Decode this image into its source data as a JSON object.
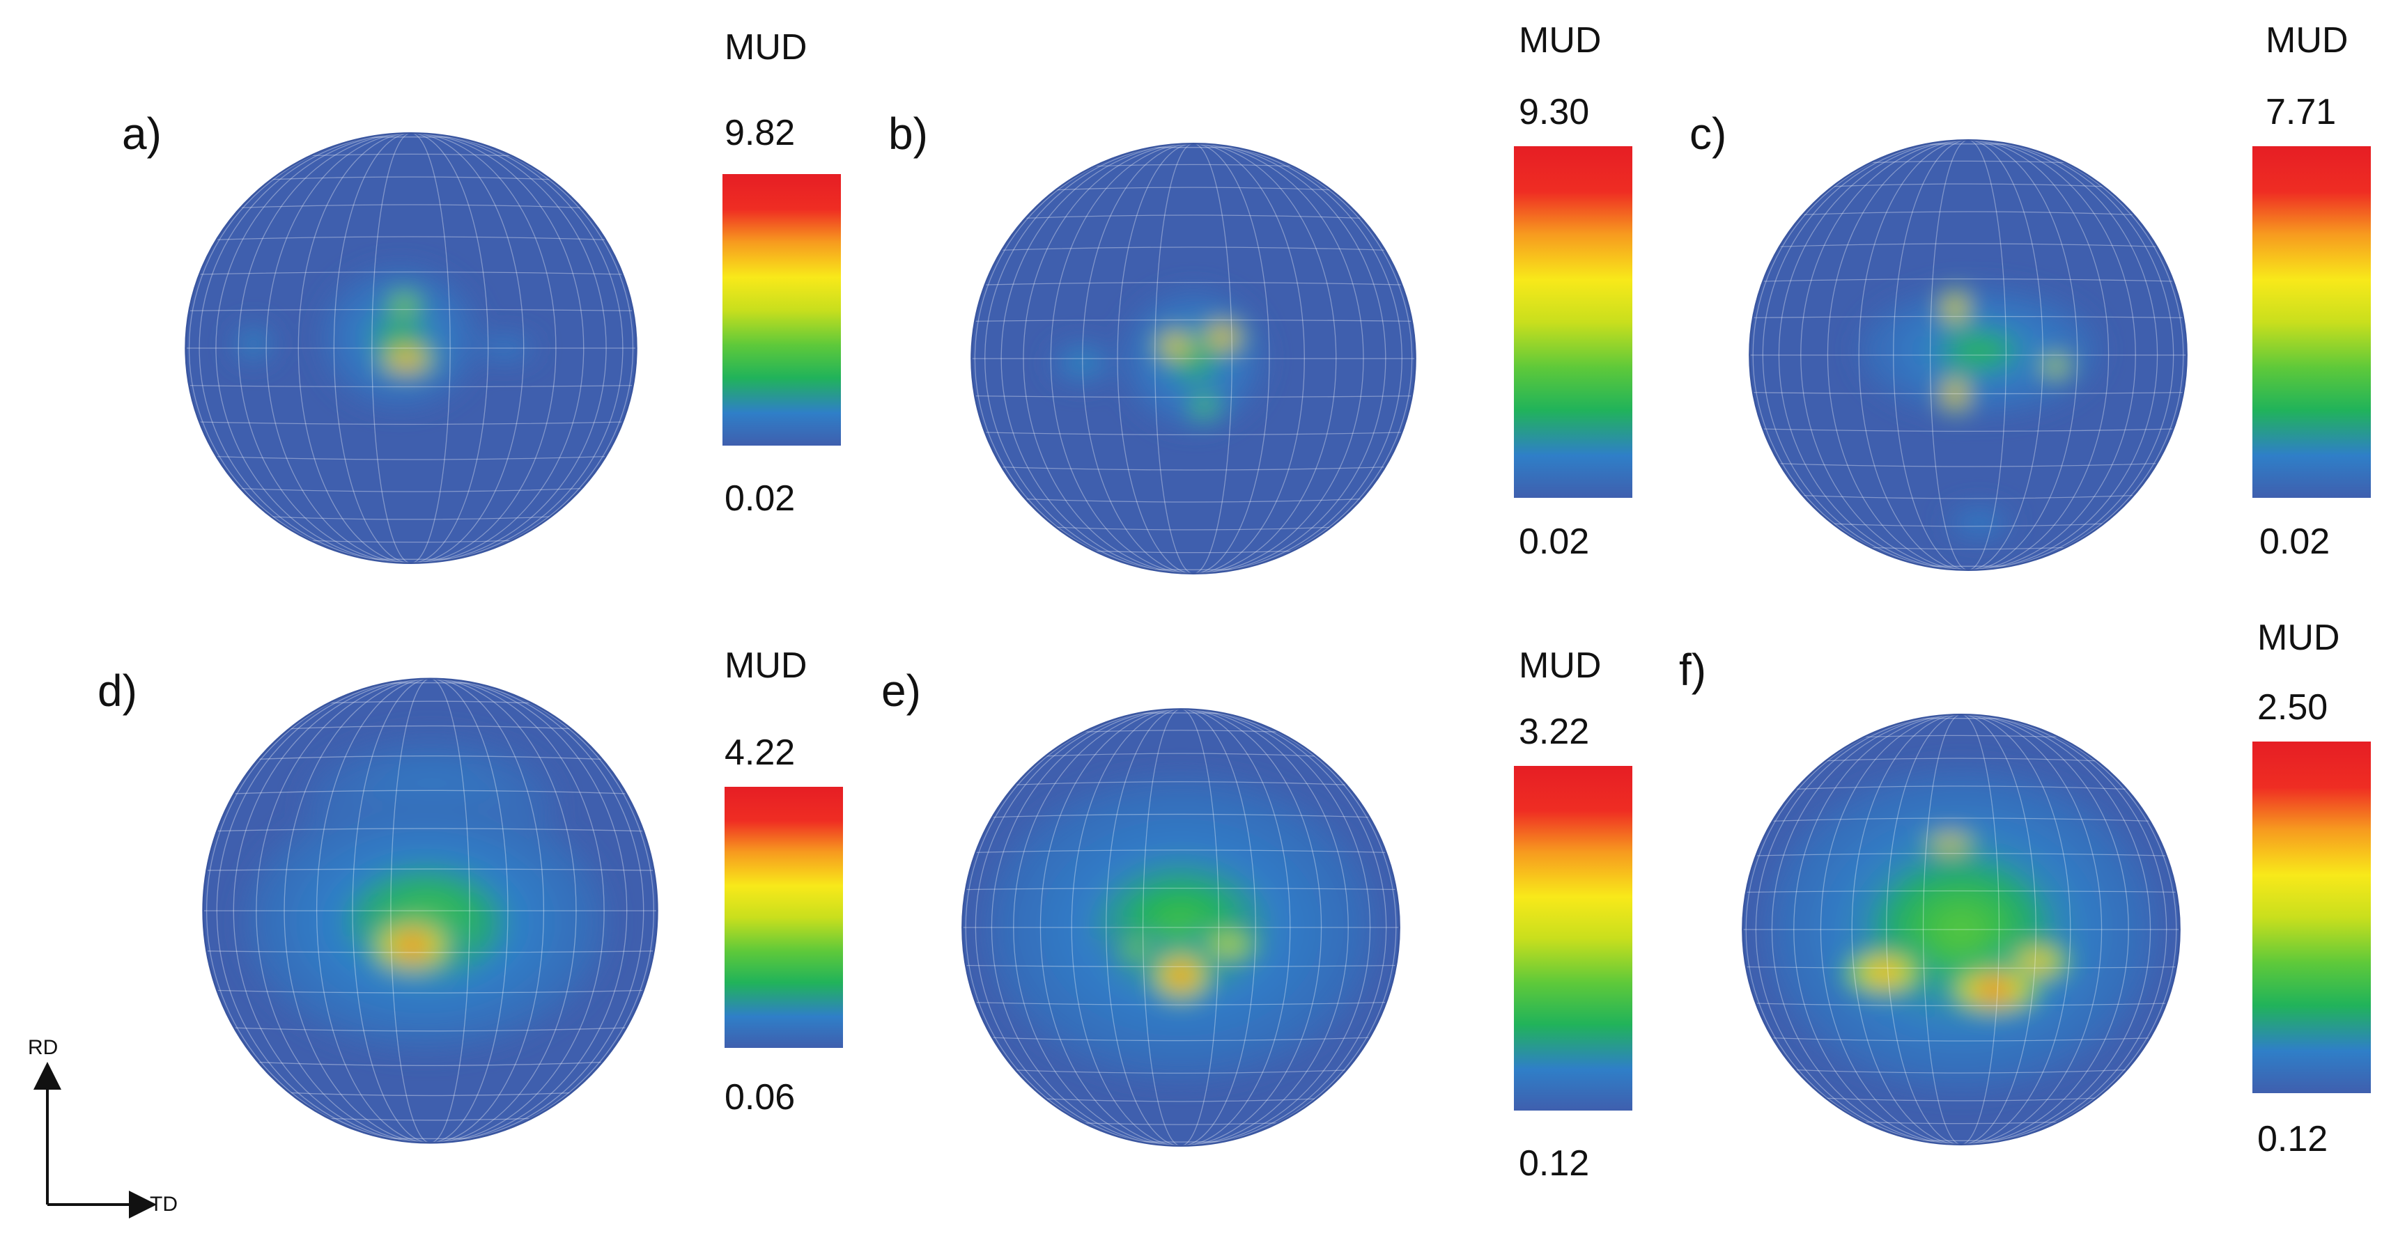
{
  "figure": {
    "panels": [
      {
        "id": "a",
        "label": "a)",
        "unit_title": "MUD",
        "max": "9.82",
        "min": "0.02",
        "hotspots": [
          {
            "u": -0.02,
            "v": 0.05,
            "rx": 0.14,
            "ry": 0.08,
            "level": 1.0
          },
          {
            "u": -0.03,
            "v": -0.2,
            "rx": 0.11,
            "ry": 0.09,
            "level": 0.6
          },
          {
            "u": -0.05,
            "v": -0.05,
            "rx": 0.35,
            "ry": 0.33,
            "level": 0.35
          },
          {
            "u": -0.7,
            "v": -0.02,
            "rx": 0.09,
            "ry": 0.09,
            "level": 0.3
          },
          {
            "u": 0.42,
            "v": 0.0,
            "rx": 0.13,
            "ry": 0.07,
            "level": 0.25
          }
        ]
      },
      {
        "id": "b",
        "label": "b)",
        "unit_title": "MUD",
        "max": "9.30",
        "min": "0.02",
        "hotspots": [
          {
            "u": -0.08,
            "v": -0.06,
            "rx": 0.1,
            "ry": 0.08,
            "level": 0.95
          },
          {
            "u": 0.13,
            "v": -0.1,
            "rx": 0.1,
            "ry": 0.08,
            "level": 1.0
          },
          {
            "u": 0.05,
            "v": 0.22,
            "rx": 0.1,
            "ry": 0.1,
            "level": 0.5
          },
          {
            "u": 0.0,
            "v": 0.0,
            "rx": 0.32,
            "ry": 0.32,
            "level": 0.35
          },
          {
            "u": -0.5,
            "v": 0.02,
            "rx": 0.14,
            "ry": 0.1,
            "level": 0.3
          }
        ]
      },
      {
        "id": "c",
        "label": "c)",
        "unit_title": "MUD",
        "max": "7.71",
        "min": "0.02",
        "hotspots": [
          {
            "u": -0.06,
            "v": -0.22,
            "rx": 0.07,
            "ry": 0.1,
            "level": 0.95
          },
          {
            "u": -0.06,
            "v": 0.18,
            "rx": 0.07,
            "ry": 0.1,
            "level": 1.0
          },
          {
            "u": 0.4,
            "v": 0.05,
            "rx": 0.08,
            "ry": 0.06,
            "level": 0.8
          },
          {
            "u": 0.05,
            "v": -0.02,
            "rx": 0.55,
            "ry": 0.3,
            "level": 0.35
          },
          {
            "u": 0.05,
            "v": 0.78,
            "rx": 0.15,
            "ry": 0.08,
            "level": 0.25
          }
        ]
      },
      {
        "id": "d",
        "label": "d)",
        "unit_title": "MUD",
        "max": "4.22",
        "min": "0.06",
        "hotspots": [
          {
            "u": -0.08,
            "v": 0.15,
            "rx": 0.22,
            "ry": 0.13,
            "level": 1.0
          },
          {
            "u": -0.02,
            "v": 0.05,
            "rx": 0.8,
            "ry": 0.55,
            "level": 0.4
          },
          {
            "u": 0.0,
            "v": -0.45,
            "rx": 0.55,
            "ry": 0.3,
            "level": 0.25
          }
        ]
      },
      {
        "id": "e",
        "label": "e)",
        "unit_title": "MUD",
        "max": "3.22",
        "min": "0.12",
        "hotspots": [
          {
            "u": 0.0,
            "v": 0.22,
            "rx": 0.16,
            "ry": 0.13,
            "level": 1.0
          },
          {
            "u": 0.22,
            "v": 0.08,
            "rx": 0.2,
            "ry": 0.08,
            "level": 0.7
          },
          {
            "u": -0.2,
            "v": 0.1,
            "rx": 0.16,
            "ry": 0.08,
            "level": 0.55
          },
          {
            "u": 0.0,
            "v": 0.0,
            "rx": 0.9,
            "ry": 0.7,
            "level": 0.38
          },
          {
            "u": -0.1,
            "v": -0.45,
            "rx": 0.35,
            "ry": 0.2,
            "level": 0.35
          }
        ]
      },
      {
        "id": "f",
        "label": "f)",
        "unit_title": "MUD",
        "max": "2.50",
        "min": "0.12",
        "hotspots": [
          {
            "u": -0.35,
            "v": 0.2,
            "rx": 0.22,
            "ry": 0.12,
            "level": 0.9
          },
          {
            "u": 0.15,
            "v": 0.28,
            "rx": 0.25,
            "ry": 0.12,
            "level": 1.0
          },
          {
            "u": 0.35,
            "v": 0.15,
            "rx": 0.18,
            "ry": 0.1,
            "level": 0.85
          },
          {
            "u": -0.05,
            "v": -0.4,
            "rx": 0.15,
            "ry": 0.05,
            "level": 0.9
          },
          {
            "u": 0.0,
            "v": 0.0,
            "rx": 0.9,
            "ry": 0.75,
            "level": 0.42
          }
        ]
      }
    ],
    "axes": {
      "vertical": "RD",
      "horizontal": "TD"
    }
  },
  "colors": {
    "background": "#3f5fae",
    "scale": [
      "#3f5fae",
      "#2f7fc8",
      "#21b35a",
      "#5ec93a",
      "#c9df1d",
      "#f8e91a",
      "#f79a1f",
      "#ef2d23",
      "#e61e24"
    ]
  }
}
